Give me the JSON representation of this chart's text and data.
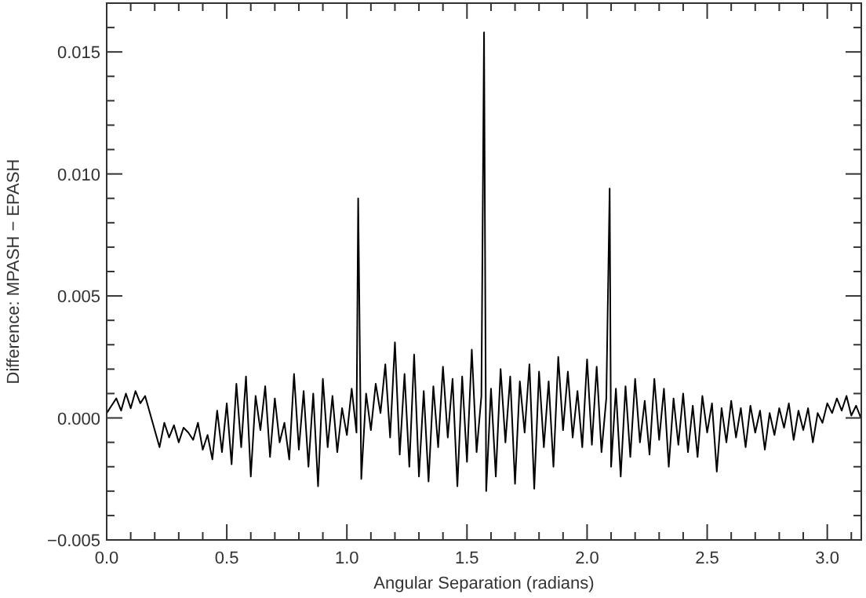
{
  "chart_data": {
    "type": "line",
    "xlabel": "Angular Separation (radians)",
    "ylabel": "Difference: MPASH − EPASH",
    "xlim": [
      0,
      3.14159
    ],
    "ylim": [
      -0.005,
      0.017
    ],
    "xticks": [
      {
        "value": 0,
        "label": "0.0"
      },
      {
        "value": 0.1,
        "label": null
      },
      {
        "value": 0.2,
        "label": null
      },
      {
        "value": 0.3,
        "label": null
      },
      {
        "value": 0.4,
        "label": null
      },
      {
        "value": 0.5,
        "label": "0.5"
      },
      {
        "value": 0.6,
        "label": null
      },
      {
        "value": 0.7,
        "label": null
      },
      {
        "value": 0.8,
        "label": null
      },
      {
        "value": 0.9,
        "label": null
      },
      {
        "value": 1,
        "label": "1.0"
      },
      {
        "value": 1.1,
        "label": null
      },
      {
        "value": 1.2,
        "label": null
      },
      {
        "value": 1.3,
        "label": null
      },
      {
        "value": 1.4,
        "label": null
      },
      {
        "value": 1.5,
        "label": "1.5"
      },
      {
        "value": 1.6,
        "label": null
      },
      {
        "value": 1.7,
        "label": null
      },
      {
        "value": 1.8,
        "label": null
      },
      {
        "value": 1.9,
        "label": null
      },
      {
        "value": 2,
        "label": "2.0"
      },
      {
        "value": 2.1,
        "label": null
      },
      {
        "value": 2.2,
        "label": null
      },
      {
        "value": 2.3,
        "label": null
      },
      {
        "value": 2.4,
        "label": null
      },
      {
        "value": 2.5,
        "label": "2.5"
      },
      {
        "value": 2.6,
        "label": null
      },
      {
        "value": 2.7,
        "label": null
      },
      {
        "value": 2.8,
        "label": null
      },
      {
        "value": 2.9,
        "label": null
      },
      {
        "value": 3,
        "label": "3.0"
      },
      {
        "value": 3.1,
        "label": null
      }
    ],
    "yticks": [
      {
        "value": -0.005,
        "label": "−0.005"
      },
      {
        "value": -0.004,
        "label": null
      },
      {
        "value": -0.003,
        "label": null
      },
      {
        "value": -0.002,
        "label": null
      },
      {
        "value": -0.001,
        "label": null
      },
      {
        "value": 0,
        "label": "0.000"
      },
      {
        "value": 0.001,
        "label": null
      },
      {
        "value": 0.002,
        "label": null
      },
      {
        "value": 0.003,
        "label": null
      },
      {
        "value": 0.004,
        "label": null
      },
      {
        "value": 0.005,
        "label": "0.005"
      },
      {
        "value": 0.006,
        "label": null
      },
      {
        "value": 0.007,
        "label": null
      },
      {
        "value": 0.008,
        "label": null
      },
      {
        "value": 0.009,
        "label": null
      },
      {
        "value": 0.01,
        "label": "0.010"
      },
      {
        "value": 0.011,
        "label": null
      },
      {
        "value": 0.012,
        "label": null
      },
      {
        "value": 0.013,
        "label": null
      },
      {
        "value": 0.014,
        "label": null
      },
      {
        "value": 0.015,
        "label": "0.015"
      },
      {
        "value": 0.016,
        "label": null
      }
    ],
    "marker": "none",
    "line_style": "solid",
    "series": [
      {
        "color": "#000000",
        "x": [
          0,
          0.02,
          0.04,
          0.06,
          0.08,
          0.1,
          0.12,
          0.14,
          0.16,
          0.18,
          0.2,
          0.22,
          0.24,
          0.26,
          0.28,
          0.3,
          0.32,
          0.34,
          0.36,
          0.38,
          0.4,
          0.42,
          0.44,
          0.46,
          0.48,
          0.5,
          0.52,
          0.54,
          0.56,
          0.58,
          0.6,
          0.62,
          0.64,
          0.66,
          0.68,
          0.7,
          0.72,
          0.74,
          0.76,
          0.78,
          0.8,
          0.82,
          0.84,
          0.86,
          0.88,
          0.9,
          0.92,
          0.94,
          0.96,
          0.98,
          1,
          1.02,
          1.04,
          1.047,
          1.06,
          1.08,
          1.1,
          1.12,
          1.14,
          1.16,
          1.18,
          1.2,
          1.22,
          1.24,
          1.26,
          1.28,
          1.3,
          1.32,
          1.34,
          1.36,
          1.38,
          1.4,
          1.42,
          1.44,
          1.46,
          1.48,
          1.5,
          1.52,
          1.54,
          1.56,
          1.571,
          1.58,
          1.6,
          1.62,
          1.64,
          1.66,
          1.68,
          1.7,
          1.72,
          1.74,
          1.76,
          1.78,
          1.8,
          1.82,
          1.84,
          1.86,
          1.88,
          1.9,
          1.92,
          1.94,
          1.96,
          1.98,
          2,
          2.02,
          2.04,
          2.06,
          2.08,
          2.094,
          2.1,
          2.12,
          2.14,
          2.16,
          2.18,
          2.2,
          2.22,
          2.24,
          2.26,
          2.28,
          2.3,
          2.32,
          2.34,
          2.36,
          2.38,
          2.4,
          2.42,
          2.44,
          2.46,
          2.48,
          2.5,
          2.52,
          2.54,
          2.56,
          2.58,
          2.6,
          2.62,
          2.64,
          2.66,
          2.68,
          2.7,
          2.72,
          2.74,
          2.76,
          2.78,
          2.8,
          2.82,
          2.84,
          2.86,
          2.88,
          2.9,
          2.92,
          2.94,
          2.96,
          2.98,
          3,
          3.02,
          3.04,
          3.06,
          3.08,
          3.1,
          3.12,
          3.14
        ],
        "values": [
          0.0002,
          0.0005,
          0.0008,
          0.0003,
          0.001,
          0.0004,
          0.0011,
          0.0006,
          0.0009,
          0.0002,
          -0.0005,
          -0.0012,
          -0.0002,
          -0.0008,
          -0.0003,
          -0.001,
          -0.0004,
          -0.0006,
          -0.0009,
          -0.0002,
          -0.0013,
          -0.0007,
          -0.0017,
          0.0003,
          -0.0014,
          0.0006,
          -0.0019,
          0.0014,
          -0.0012,
          0.0017,
          -0.0024,
          0.0009,
          -0.0005,
          0.0013,
          -0.0016,
          0.0008,
          -0.001,
          -0.0002,
          -0.0017,
          0.0018,
          -0.0013,
          0.0011,
          -0.002,
          0.001,
          -0.0028,
          0.0016,
          -0.0012,
          0.0009,
          -0.0014,
          0.0004,
          -0.0007,
          0.0012,
          -0.0006,
          0.009,
          -0.0025,
          0.001,
          -0.0005,
          0.0014,
          0.0002,
          0.0022,
          -0.0008,
          0.0031,
          -0.0015,
          0.0018,
          -0.002,
          0.0026,
          -0.0024,
          0.0011,
          -0.0026,
          0.0013,
          -0.0012,
          0.0021,
          -0.0008,
          0.0016,
          -0.0028,
          0.0017,
          -0.0018,
          0.0028,
          -0.0014,
          0.0009,
          0.0158,
          -0.003,
          0.0012,
          -0.0024,
          0.002,
          -0.001,
          0.0017,
          -0.0027,
          0.0015,
          -0.0006,
          0.0022,
          -0.0029,
          0.0019,
          -0.0012,
          0.0015,
          -0.002,
          0.0025,
          -0.0005,
          0.0019,
          -0.0008,
          0.0011,
          -0.0012,
          0.0024,
          -0.0011,
          0.0021,
          -0.0014,
          0.0008,
          0.0094,
          -0.002,
          0.0012,
          -0.0024,
          0.0013,
          -0.0016,
          0.0016,
          -0.001,
          0.0007,
          -0.0015,
          0.0016,
          -0.0009,
          0.0012,
          -0.002,
          0.0008,
          -0.0011,
          0.001,
          -0.0014,
          0.0005,
          -0.0016,
          0.0009,
          -0.0006,
          0.0006,
          -0.0022,
          0.0004,
          -0.001,
          0.0007,
          -0.0008,
          0.0004,
          -0.0012,
          0.0005,
          -0.0006,
          0.0003,
          -0.0013,
          0.0002,
          -0.0007,
          0.0004,
          -0.0004,
          0.0006,
          -0.0009,
          0.0003,
          -0.0005,
          0.0004,
          -0.001,
          0.0002,
          -0.0002,
          0.0006,
          0.0002,
          0.0008,
          0.0003,
          0.0009,
          0.0001,
          0.0005,
          0
        ]
      }
    ]
  }
}
